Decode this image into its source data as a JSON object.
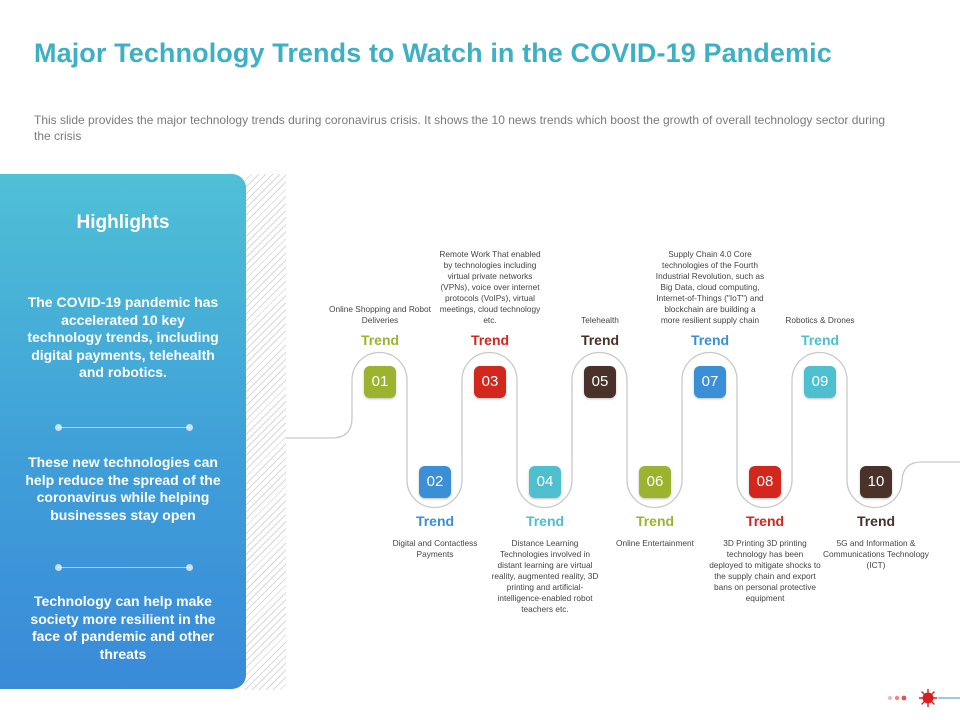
{
  "title": "Major Technology Trends to Watch in the COVID-19 Pandemic",
  "subtitle": "This slide provides  the major technology trends during coronavirus  crisis. It shows the 10 news trends which boost the growth of overall  technology sector during the crisis",
  "highlights": {
    "heading": "Highlights",
    "points": [
      "The COVID-19 pandemic has accelerated 10 key technology trends, including digital payments, telehealth and robotics.",
      "These new technologies can help reduce the spread of the coronavirus while helping businesses stay open",
      "Technology can help make society more resilient in the face of pandemic and other threats"
    ]
  },
  "trends": [
    {
      "number": "01",
      "label": "Trend",
      "color": "#9cb330",
      "description": "Online Shopping and Robot Deliveries"
    },
    {
      "number": "02",
      "label": "Trend",
      "color": "#3a8fd6",
      "description": "Digital and Contactless Payments"
    },
    {
      "number": "03",
      "label": "Trend",
      "color": "#d3261c",
      "description": "Remote Work That enabled by technologies including virtual private networks (VPNs), voice over internet protocols (VoIPs), virtual meetings, cloud technology etc."
    },
    {
      "number": "04",
      "label": "Trend",
      "color": "#4ebfcf",
      "description": "Distance Learning Technologies involved in distant learning are virtual reality, augmented reality, 3D printing and artificial-intelligence-enabled robot teachers etc."
    },
    {
      "number": "05",
      "label": "Trend",
      "color": "#4a3129",
      "description": "Telehealth"
    },
    {
      "number": "06",
      "label": "Trend",
      "color": "#9cb330",
      "description": "Online Entertainment"
    },
    {
      "number": "07",
      "label": "Trend",
      "color": "#3a8fd6",
      "description": "Supply Chain 4.0 Core technologies of the Fourth Industrial Revolution, such as Big Data, cloud computing, Internet-of-Things (\"IoT\") and blockchain are building a more resilient supply chain"
    },
    {
      "number": "08",
      "label": "Trend",
      "color": "#d3261c",
      "description": "3D Printing 3D printing technology has been deployed to mitigate shocks to the supply chain and export bans on personal protective equipment"
    },
    {
      "number": "09",
      "label": "Trend",
      "color": "#4ebfcf",
      "description": "Robotics & Drones"
    },
    {
      "number": "10",
      "label": "Trend",
      "color": "#4a3129",
      "description": "5G and Information & Communications Technology (ICT)"
    }
  ],
  "colors": {
    "title": "#3db0c4",
    "panel_top": "#4fc0d6",
    "panel_bottom": "#3a8ad8",
    "path_line": "#c9c9c9"
  }
}
